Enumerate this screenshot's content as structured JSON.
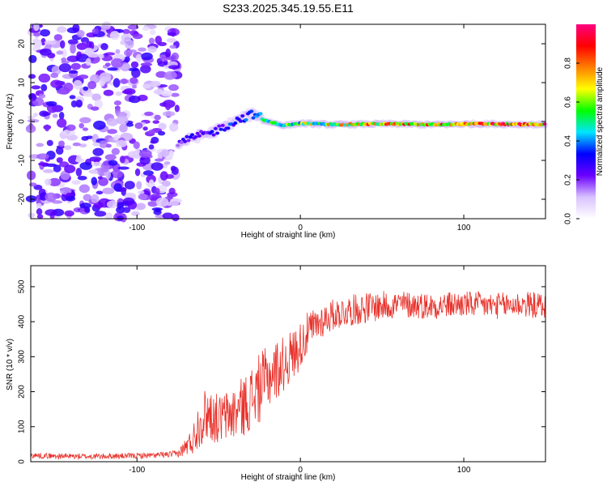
{
  "chart_data": [
    {
      "type": "heatmap",
      "title": "S233.2025.345.19.55.E11",
      "xlabel": "Height of straight line (km)",
      "ylabel": "Frequency (Hz)",
      "xlim": [
        -165,
        150
      ],
      "ylim": [
        -25,
        25
      ],
      "xticks": [
        -100,
        0,
        100
      ],
      "yticks": [
        -20,
        -10,
        0,
        10,
        20
      ],
      "colorbar": {
        "label": "Normalized spectral amplitude",
        "range": [
          0,
          1
        ],
        "ticks": [
          "0.0",
          "0.2",
          "0.4",
          "0.6",
          "0.8"
        ],
        "colors": [
          "#ffffff",
          "#d9c2ff",
          "#6a00ff",
          "#0000ff",
          "#00e5ff",
          "#00ff00",
          "#ffff00",
          "#ff8000",
          "#ff0000",
          "#ff0080"
        ]
      },
      "noise_region": {
        "x": [
          -165,
          -75
        ],
        "freq": [
          -25,
          25
        ],
        "amplitude": 0.15
      },
      "signal_track": {
        "x": [
          -75,
          -65,
          -55,
          -45,
          -35,
          -28,
          -20,
          -10,
          0,
          20,
          50,
          80,
          110,
          150
        ],
        "freq": [
          -6,
          -4,
          -3,
          -1,
          1,
          2,
          0,
          -1,
          -0.5,
          -0.8,
          -0.6,
          -0.8,
          -0.6,
          -0.8
        ],
        "amplitude": [
          0.25,
          0.28,
          0.3,
          0.32,
          0.35,
          0.4,
          0.5,
          0.55,
          0.6,
          0.7,
          0.75,
          0.8,
          0.85,
          0.9
        ]
      }
    },
    {
      "type": "line",
      "xlabel": "Height of straight line (km)",
      "ylabel": "SNR (10 * v/v)",
      "xlim": [
        -165,
        150
      ],
      "ylim": [
        0,
        560
      ],
      "xticks": [
        -100,
        0,
        100
      ],
      "yticks": [
        0,
        100,
        200,
        300,
        400,
        500
      ],
      "series": [
        {
          "name": "SNR",
          "color": "#e8312a",
          "x": [
            -165,
            -150,
            -130,
            -110,
            -90,
            -75,
            -66,
            -62,
            -57,
            -50,
            -40,
            -32,
            -25,
            -18,
            -10,
            -2,
            5,
            12,
            20,
            28,
            40,
            60,
            80,
            100,
            120,
            135,
            150
          ],
          "y": [
            18,
            16,
            15,
            16,
            18,
            22,
            60,
            110,
            140,
            120,
            140,
            170,
            210,
            250,
            280,
            320,
            370,
            400,
            420,
            430,
            440,
            450,
            445,
            450,
            445,
            450,
            445
          ],
          "noise_amplitude": [
            8,
            8,
            8,
            8,
            8,
            10,
            40,
            70,
            80,
            70,
            80,
            90,
            100,
            90,
            80,
            70,
            60,
            50,
            45,
            45,
            45,
            40,
            38,
            38,
            38,
            38,
            38
          ]
        }
      ]
    }
  ]
}
